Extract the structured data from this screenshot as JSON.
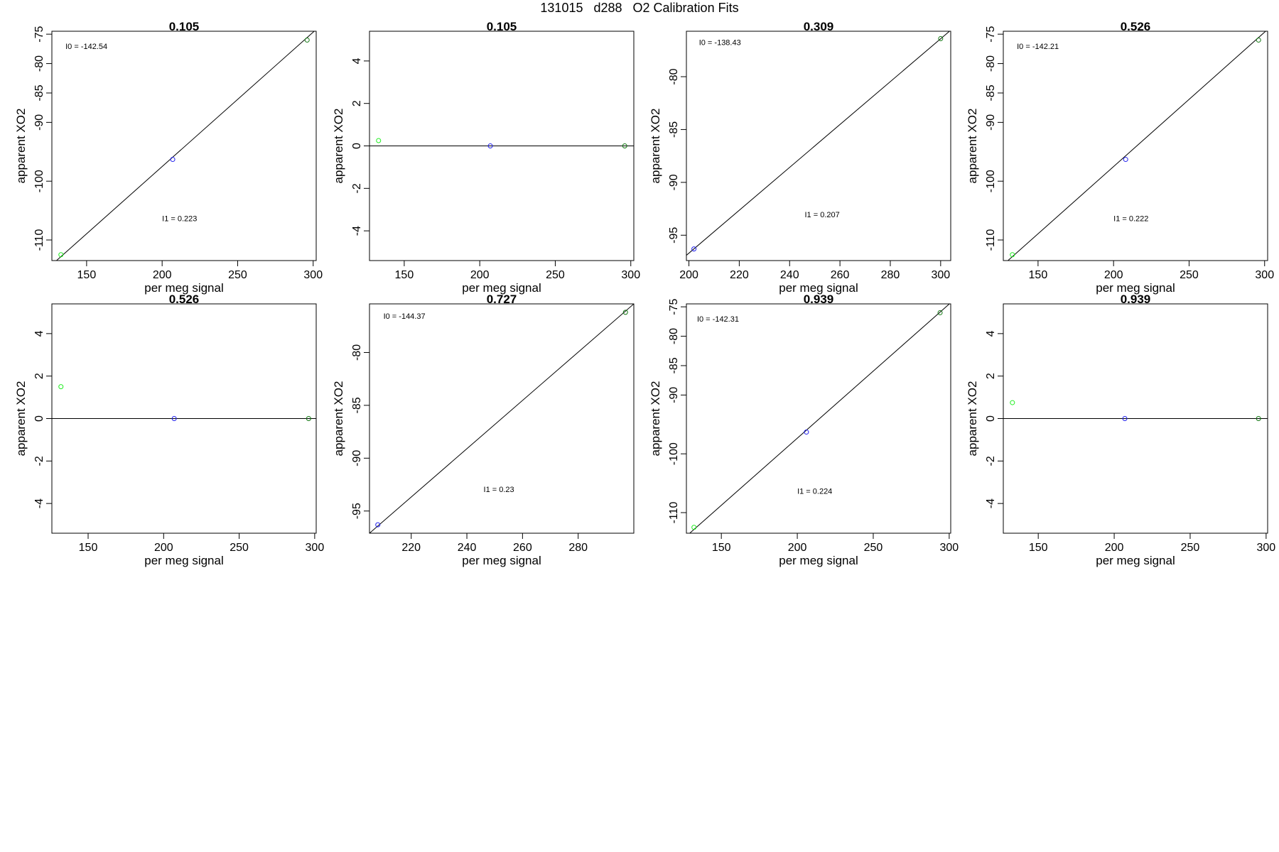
{
  "page": {
    "title": "131015   d288   O2 Calibration Fits",
    "colors": {
      "axis": "#000000",
      "green": "#22ee22",
      "blue": "#2222ee",
      "dark_green": "#117711",
      "fit_line": "#000000"
    }
  },
  "chart_data": [
    {
      "type": "scatter",
      "title": "0.105",
      "xlabel": "per meg signal",
      "ylabel": "apparent XO2",
      "xlim": [
        127,
        302
      ],
      "ylim": [
        -113.5,
        -74.5
      ],
      "xticks": [
        150,
        200,
        250,
        300
      ],
      "yticks": [
        -110,
        -100,
        -90,
        -85,
        -80,
        -75
      ],
      "points": [
        {
          "x": 133,
          "y": -112.5,
          "color": "green"
        },
        {
          "x": 207,
          "y": -96.3,
          "color": "blue"
        },
        {
          "x": 296,
          "y": -76.0,
          "color": "dark_green"
        }
      ],
      "fit_line": [
        [
          127,
          -114.2
        ],
        [
          302,
          -74.2
        ]
      ],
      "annotations": [
        {
          "label": "I0 =",
          "value": "-142.54",
          "x": 136,
          "y": -77.5
        },
        {
          "label": "I1 =",
          "value": "0.223",
          "x": 200,
          "y": -106.8
        }
      ]
    },
    {
      "type": "scatter",
      "title": "0.105",
      "xlabel": "per meg signal",
      "ylabel": "apparent XO2",
      "xlim": [
        127,
        302
      ],
      "ylim": [
        -5.4,
        5.4
      ],
      "xticks": [
        150,
        200,
        250,
        300
      ],
      "yticks": [
        -4,
        -2,
        0,
        2,
        4
      ],
      "points": [
        {
          "x": 133,
          "y": 0.25,
          "color": "green"
        },
        {
          "x": 207,
          "y": 0.0,
          "color": "blue"
        },
        {
          "x": 296,
          "y": 0.0,
          "color": "dark_green"
        }
      ],
      "fit_line": [
        [
          127,
          0
        ],
        [
          302,
          0
        ]
      ],
      "annotations": []
    },
    {
      "type": "scatter",
      "title": "0.309",
      "xlabel": "per meg signal",
      "ylabel": "apparent XO2",
      "xlim": [
        199,
        304
      ],
      "ylim": [
        -97.4,
        -75.7
      ],
      "xticks": [
        200,
        220,
        240,
        260,
        280,
        300
      ],
      "yticks": [
        -95,
        -90,
        -85,
        -80
      ],
      "points": [
        {
          "x": 202,
          "y": -96.3,
          "color": "blue"
        },
        {
          "x": 300,
          "y": -76.4,
          "color": "dark_green"
        }
      ],
      "fit_line": [
        [
          199,
          -96.9
        ],
        [
          304,
          -75.6
        ]
      ],
      "annotations": [
        {
          "label": "I0 =",
          "value": "-138.43",
          "x": 204,
          "y": -77.0
        },
        {
          "label": "I1 =",
          "value": "0.207",
          "x": 246,
          "y": -93.3
        }
      ]
    },
    {
      "type": "scatter",
      "title": "0.526",
      "xlabel": "per meg signal",
      "ylabel": "apparent XO2",
      "xlim": [
        127,
        302
      ],
      "ylim": [
        -113.5,
        -74.5
      ],
      "xticks": [
        150,
        200,
        250,
        300
      ],
      "yticks": [
        -110,
        -100,
        -90,
        -85,
        -80,
        -75
      ],
      "points": [
        {
          "x": 133,
          "y": -112.5,
          "color": "green"
        },
        {
          "x": 208,
          "y": -96.3,
          "color": "blue"
        },
        {
          "x": 296,
          "y": -76.0,
          "color": "dark_green"
        }
      ],
      "fit_line": [
        [
          127,
          -114.2
        ],
        [
          302,
          -74.2
        ]
      ],
      "annotations": [
        {
          "label": "I0 =",
          "value": "-142.21",
          "x": 136,
          "y": -77.5
        },
        {
          "label": "I1 =",
          "value": "0.222",
          "x": 200,
          "y": -106.8
        }
      ]
    },
    {
      "type": "scatter",
      "title": "0.526",
      "xlabel": "per meg signal",
      "ylabel": "apparent XO2",
      "xlim": [
        126,
        301
      ],
      "ylim": [
        -5.4,
        5.4
      ],
      "xticks": [
        150,
        200,
        250,
        300
      ],
      "yticks": [
        -4,
        -2,
        0,
        2,
        4
      ],
      "points": [
        {
          "x": 132,
          "y": 1.5,
          "color": "green"
        },
        {
          "x": 207,
          "y": 0.0,
          "color": "blue"
        },
        {
          "x": 296,
          "y": 0.0,
          "color": "dark_green"
        }
      ],
      "fit_line": [
        [
          126,
          0
        ],
        [
          301,
          0
        ]
      ],
      "annotations": []
    },
    {
      "type": "scatter",
      "title": "0.727",
      "xlabel": "per meg signal",
      "ylabel": "apparent XO2",
      "xlim": [
        205,
        300
      ],
      "ylim": [
        -97.1,
        -75.4
      ],
      "xticks": [
        220,
        240,
        260,
        280
      ],
      "yticks": [
        -95,
        -90,
        -85,
        -80
      ],
      "points": [
        {
          "x": 208,
          "y": -96.3,
          "color": "blue"
        },
        {
          "x": 297,
          "y": -76.2,
          "color": "dark_green"
        }
      ],
      "fit_line": [
        [
          205,
          -97.1
        ],
        [
          300,
          -75.4
        ]
      ],
      "annotations": [
        {
          "label": "I0 =",
          "value": "-144.37",
          "x": 210,
          "y": -76.8
        },
        {
          "label": "I1 =",
          "value": "0.23",
          "x": 246,
          "y": -93.2
        }
      ]
    },
    {
      "type": "scatter",
      "title": "0.939",
      "xlabel": "per meg signal",
      "ylabel": "apparent XO2",
      "xlim": [
        127,
        301
      ],
      "ylim": [
        -113.5,
        -74.5
      ],
      "xticks": [
        150,
        200,
        250,
        300
      ],
      "yticks": [
        -110,
        -100,
        -90,
        -85,
        -80,
        -75
      ],
      "points": [
        {
          "x": 132,
          "y": -112.5,
          "color": "green"
        },
        {
          "x": 206,
          "y": -96.3,
          "color": "blue"
        },
        {
          "x": 294,
          "y": -76.0,
          "color": "dark_green"
        }
      ],
      "fit_line": [
        [
          127,
          -114.0
        ],
        [
          301,
          -74.3
        ]
      ],
      "annotations": [
        {
          "label": "I0 =",
          "value": "-142.31",
          "x": 134,
          "y": -77.5
        },
        {
          "label": "I1 =",
          "value": "0.224",
          "x": 200,
          "y": -106.8
        }
      ]
    },
    {
      "type": "scatter",
      "title": "0.939",
      "xlabel": "per meg signal",
      "ylabel": "apparent XO2",
      "xlim": [
        127,
        301
      ],
      "ylim": [
        -5.4,
        5.4
      ],
      "xticks": [
        150,
        200,
        250,
        300
      ],
      "yticks": [
        -4,
        -2,
        0,
        2,
        4
      ],
      "points": [
        {
          "x": 133,
          "y": 0.75,
          "color": "green"
        },
        {
          "x": 207,
          "y": 0.0,
          "color": "blue"
        },
        {
          "x": 295,
          "y": 0.0,
          "color": "dark_green"
        }
      ],
      "fit_line": [
        [
          127,
          0
        ],
        [
          301,
          0
        ]
      ],
      "annotations": []
    }
  ]
}
